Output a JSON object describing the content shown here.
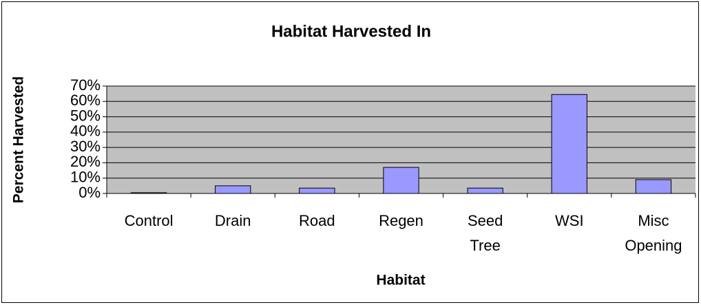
{
  "chart_data": {
    "type": "bar",
    "title": "Habitat Harvested In",
    "x_label": "Habitat",
    "y_label": "Percent Harvested",
    "categories": [
      "Control",
      "Drain",
      "Road",
      "Regen",
      "Seed Tree",
      "WSI",
      "Misc Opening"
    ],
    "values": [
      0.5,
      5,
      3.5,
      17,
      3.5,
      64.5,
      9
    ],
    "color": "#9999ff",
    "ylim": [
      0,
      70
    ],
    "yticks": [
      {
        "value": 0,
        "label": "0%"
      },
      {
        "value": 10,
        "label": "10%"
      },
      {
        "value": 20,
        "label": "20%"
      },
      {
        "value": 30,
        "label": "30%"
      },
      {
        "value": 40,
        "label": "40%"
      },
      {
        "value": 50,
        "label": "50%"
      },
      {
        "value": 60,
        "label": "60%"
      },
      {
        "value": 70,
        "label": "70%"
      }
    ],
    "grid": true
  }
}
